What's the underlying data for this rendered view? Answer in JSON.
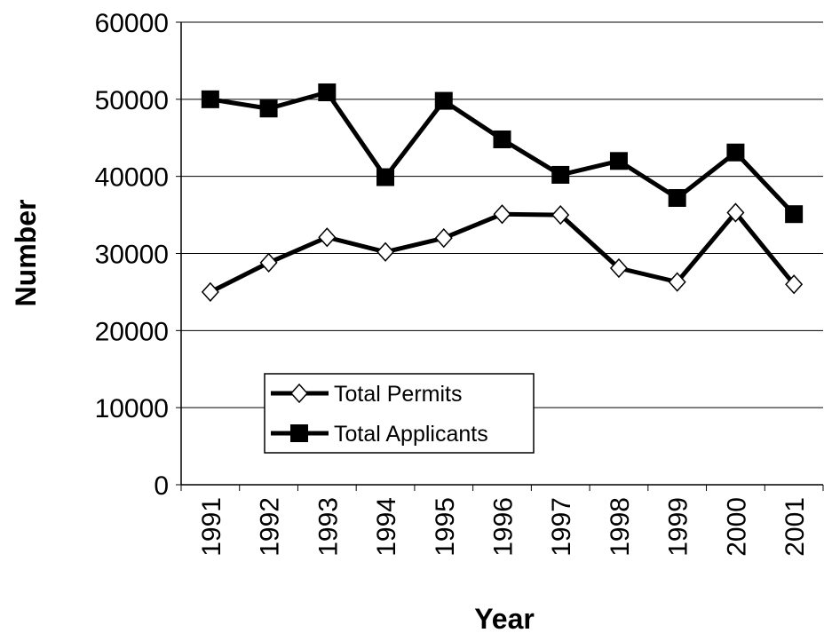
{
  "chart_data": {
    "type": "line",
    "x_label": "Year",
    "y_label": "Number",
    "categories": [
      "1991",
      "1992",
      "1993",
      "1994",
      "1995",
      "1996",
      "1997",
      "1998",
      "1999",
      "2000",
      "2001"
    ],
    "series": [
      {
        "name": "Total Permits",
        "color": "#000000",
        "marker": "diamond",
        "values": [
          25000,
          28800,
          32100,
          30200,
          32000,
          35100,
          35000,
          28100,
          26300,
          35300,
          26000
        ]
      },
      {
        "name": "Total Applicants",
        "color": "#000000",
        "marker": "square",
        "values": [
          50000,
          48800,
          50900,
          39900,
          49800,
          44800,
          40200,
          42000,
          37200,
          43100,
          35100
        ]
      }
    ],
    "ylim": [
      0,
      60000
    ],
    "yticks": [
      0,
      10000,
      20000,
      30000,
      40000,
      50000,
      60000
    ],
    "grid": true,
    "legend": "lower-left"
  }
}
